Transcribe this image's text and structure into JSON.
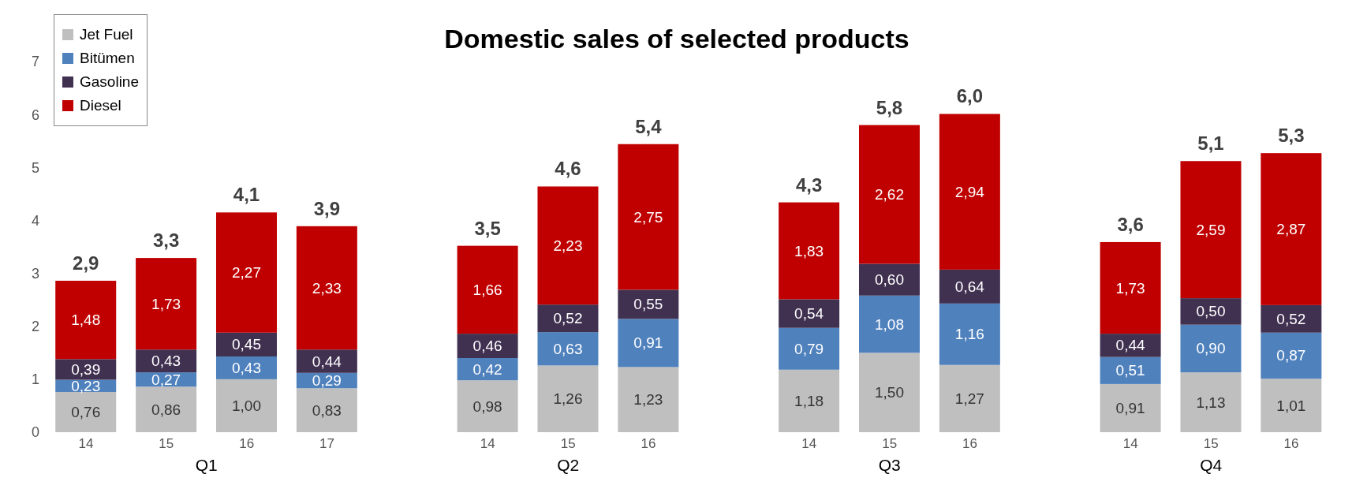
{
  "chart_data": {
    "type": "bar",
    "title": "Domestic sales of selected products",
    "stacked": true,
    "categories": [
      "14",
      "15",
      "16",
      "17",
      null,
      "14",
      "15",
      "16",
      null,
      "14",
      "15",
      "16",
      null,
      "14",
      "15",
      "16"
    ],
    "series": [
      {
        "name": "Jet Fuel",
        "color": "#bfbfbf",
        "values": [
          0.76,
          0.86,
          1.0,
          0.83,
          null,
          0.98,
          1.26,
          1.23,
          null,
          1.18,
          1.5,
          1.27,
          null,
          0.91,
          1.13,
          1.01
        ],
        "value_labels": [
          "0,76",
          "0,86",
          "1,00",
          "0,83",
          null,
          "0,98",
          "1,26",
          "1,23",
          null,
          "1,18",
          "1,50",
          "1,27",
          null,
          "0,91",
          "1,13",
          "1,01"
        ]
      },
      {
        "name": "Bitümen",
        "color": "#4f81bd",
        "values": [
          0.23,
          0.27,
          0.43,
          0.29,
          null,
          0.42,
          0.63,
          0.91,
          null,
          0.79,
          1.08,
          1.16,
          null,
          0.51,
          0.9,
          0.87
        ],
        "value_labels": [
          "0,23",
          "0,27",
          "0,43",
          "0,29",
          null,
          "0,42",
          "0,63",
          "0,91",
          null,
          "0,79",
          "1,08",
          "1,16",
          null,
          "0,51",
          "0,90",
          "0,87"
        ]
      },
      {
        "name": "Gasoline",
        "color": "#403151",
        "values": [
          0.39,
          0.43,
          0.45,
          0.44,
          null,
          0.46,
          0.52,
          0.55,
          null,
          0.54,
          0.6,
          0.64,
          null,
          0.44,
          0.5,
          0.52
        ],
        "value_labels": [
          "0,39",
          "0,43",
          "0,45",
          "0,44",
          null,
          "0,46",
          "0,52",
          "0,55",
          null,
          "0,54",
          "0,60",
          "0,64",
          null,
          "0,44",
          "0,50",
          "0,52"
        ]
      },
      {
        "name": "Diesel",
        "color": "#c00000",
        "values": [
          1.48,
          1.73,
          2.27,
          2.33,
          null,
          1.66,
          2.23,
          2.75,
          null,
          1.83,
          2.62,
          2.94,
          null,
          1.73,
          2.59,
          2.87
        ],
        "value_labels": [
          "1,48",
          "1,73",
          "2,27",
          "2,33",
          null,
          "1,66",
          "2,23",
          "2,75",
          null,
          "1,83",
          "2,62",
          "2,94",
          null,
          "1,73",
          "2,59",
          "2,87"
        ]
      }
    ],
    "totals": [
      "2,9",
      "3,3",
      "4,1",
      "3,9",
      null,
      "3,5",
      "4,6",
      "5,4",
      null,
      "4,3",
      "5,8",
      "6,0",
      null,
      "3,6",
      "5,1",
      "5,3"
    ],
    "annotations": [
      "Q1",
      "Q2",
      "Q3",
      "Q4"
    ],
    "ylim": [
      0,
      7
    ],
    "yticks": [
      0,
      1,
      2,
      3,
      4,
      5,
      6,
      7
    ],
    "grid": false,
    "legend": "top left"
  }
}
